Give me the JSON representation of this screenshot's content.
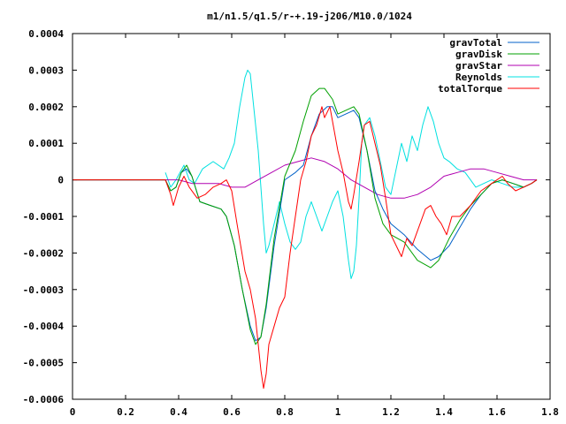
{
  "chart_data": {
    "type": "line",
    "title": "m1/n1.5/q1.5/r-+.19-j206/M10.0/1024",
    "xlabel": "",
    "ylabel": "",
    "xlim": [
      0,
      1.8
    ],
    "ylim": [
      -0.0006,
      0.0004
    ],
    "xticks": [
      0,
      0.2,
      0.4,
      0.6,
      0.8,
      1,
      1.2,
      1.4,
      1.6,
      1.8
    ],
    "xtick_labels": [
      "0",
      "0.2",
      "0.4",
      "0.6",
      "0.8",
      "1",
      "1.2",
      "1.4",
      "1.6",
      "1.8"
    ],
    "yticks": [
      0.0004,
      0.0003,
      0.0002,
      0.0001,
      0,
      -0.0001,
      -0.0002,
      -0.0003,
      -0.0004,
      -0.0005,
      -0.0006
    ],
    "ytick_labels": [
      "0.0004",
      "0.0003",
      "0.0002",
      "0.0001",
      "0",
      "-0.0001",
      "-0.0002",
      "-0.0003",
      "-0.0004",
      "-0.0005",
      "-0.0006"
    ],
    "grid": false,
    "legend_position": "top-right",
    "series": [
      {
        "name": "gravTotal",
        "color": "#0060c8",
        "points": [
          [
            0,
            0
          ],
          [
            0.35,
            0
          ],
          [
            0.37,
            -3e-05
          ],
          [
            0.39,
            -2e-05
          ],
          [
            0.41,
            2e-05
          ],
          [
            0.43,
            3e-05
          ],
          [
            0.45,
            1e-05
          ],
          [
            0.48,
            -6e-05
          ],
          [
            0.52,
            -7e-05
          ],
          [
            0.56,
            -8e-05
          ],
          [
            0.58,
            -0.0001
          ],
          [
            0.61,
            -0.00018
          ],
          [
            0.64,
            -0.0003
          ],
          [
            0.67,
            -0.0004
          ],
          [
            0.69,
            -0.00044
          ],
          [
            0.71,
            -0.00043
          ],
          [
            0.73,
            -0.00035
          ],
          [
            0.76,
            -0.00018
          ],
          [
            0.8,
            0
          ],
          [
            0.84,
            2e-05
          ],
          [
            0.87,
            4e-05
          ],
          [
            0.9,
            0.00012
          ],
          [
            0.93,
            0.00018
          ],
          [
            0.96,
            0.0002
          ],
          [
            0.98,
            0.0002
          ],
          [
            1.0,
            0.00017
          ],
          [
            1.03,
            0.00018
          ],
          [
            1.06,
            0.00019
          ],
          [
            1.08,
            0.00017
          ],
          [
            1.11,
            8e-05
          ],
          [
            1.14,
            -3e-05
          ],
          [
            1.17,
            -8e-05
          ],
          [
            1.2,
            -0.00012
          ],
          [
            1.25,
            -0.00015
          ],
          [
            1.3,
            -0.00019
          ],
          [
            1.35,
            -0.00022
          ],
          [
            1.38,
            -0.00021
          ],
          [
            1.42,
            -0.00018
          ],
          [
            1.46,
            -0.00013
          ],
          [
            1.5,
            -8e-05
          ],
          [
            1.54,
            -4e-05
          ],
          [
            1.58,
            -1e-05
          ],
          [
            1.62,
            0
          ],
          [
            1.66,
            -1e-05
          ],
          [
            1.7,
            -2e-05
          ],
          [
            1.73,
            -1e-05
          ],
          [
            1.75,
            0
          ]
        ]
      },
      {
        "name": "gravDisk",
        "color": "#00a000",
        "points": [
          [
            0,
            0
          ],
          [
            0.35,
            0
          ],
          [
            0.37,
            -3e-05
          ],
          [
            0.39,
            -2e-05
          ],
          [
            0.41,
            2e-05
          ],
          [
            0.43,
            4e-05
          ],
          [
            0.45,
            1e-05
          ],
          [
            0.48,
            -6e-05
          ],
          [
            0.52,
            -7e-05
          ],
          [
            0.56,
            -8e-05
          ],
          [
            0.58,
            -0.0001
          ],
          [
            0.61,
            -0.00018
          ],
          [
            0.64,
            -0.0003
          ],
          [
            0.67,
            -0.00041
          ],
          [
            0.69,
            -0.00045
          ],
          [
            0.71,
            -0.00043
          ],
          [
            0.73,
            -0.00034
          ],
          [
            0.76,
            -0.00016
          ],
          [
            0.8,
            1e-05
          ],
          [
            0.84,
            8e-05
          ],
          [
            0.87,
            0.00016
          ],
          [
            0.9,
            0.00023
          ],
          [
            0.93,
            0.00025
          ],
          [
            0.95,
            0.00025
          ],
          [
            0.98,
            0.00022
          ],
          [
            1.0,
            0.00018
          ],
          [
            1.03,
            0.00019
          ],
          [
            1.06,
            0.0002
          ],
          [
            1.08,
            0.00018
          ],
          [
            1.11,
            8e-05
          ],
          [
            1.14,
            -5e-05
          ],
          [
            1.17,
            -0.00012
          ],
          [
            1.2,
            -0.00015
          ],
          [
            1.25,
            -0.00017
          ],
          [
            1.3,
            -0.00022
          ],
          [
            1.35,
            -0.00024
          ],
          [
            1.38,
            -0.00022
          ],
          [
            1.42,
            -0.00016
          ],
          [
            1.46,
            -0.00011
          ],
          [
            1.5,
            -7e-05
          ],
          [
            1.54,
            -4e-05
          ],
          [
            1.58,
            -1e-05
          ],
          [
            1.62,
            0
          ],
          [
            1.66,
            -1e-05
          ],
          [
            1.7,
            -2e-05
          ],
          [
            1.73,
            -1e-05
          ],
          [
            1.75,
            0
          ]
        ]
      },
      {
        "name": "gravStar",
        "color": "#b000b0",
        "points": [
          [
            0,
            0
          ],
          [
            0.35,
            0
          ],
          [
            0.4,
            0
          ],
          [
            0.45,
            -1e-05
          ],
          [
            0.5,
            -1e-05
          ],
          [
            0.55,
            -1e-05
          ],
          [
            0.6,
            -2e-05
          ],
          [
            0.65,
            -2e-05
          ],
          [
            0.7,
            0
          ],
          [
            0.75,
            2e-05
          ],
          [
            0.8,
            4e-05
          ],
          [
            0.85,
            5e-05
          ],
          [
            0.9,
            6e-05
          ],
          [
            0.95,
            5e-05
          ],
          [
            1.0,
            3e-05
          ],
          [
            1.05,
            0
          ],
          [
            1.1,
            -2e-05
          ],
          [
            1.15,
            -4e-05
          ],
          [
            1.2,
            -5e-05
          ],
          [
            1.25,
            -5e-05
          ],
          [
            1.3,
            -4e-05
          ],
          [
            1.35,
            -2e-05
          ],
          [
            1.4,
            1e-05
          ],
          [
            1.45,
            2e-05
          ],
          [
            1.5,
            3e-05
          ],
          [
            1.55,
            3e-05
          ],
          [
            1.6,
            2e-05
          ],
          [
            1.65,
            1e-05
          ],
          [
            1.7,
            0
          ],
          [
            1.75,
            0
          ]
        ]
      },
      {
        "name": "Reynolds",
        "color": "#00e0e0",
        "points": [
          [
            0.35,
            2e-05
          ],
          [
            0.37,
            -2e-05
          ],
          [
            0.39,
            0
          ],
          [
            0.42,
            4e-05
          ],
          [
            0.44,
            0
          ],
          [
            0.46,
            -1e-05
          ],
          [
            0.49,
            3e-05
          ],
          [
            0.53,
            5e-05
          ],
          [
            0.57,
            3e-05
          ],
          [
            0.59,
            6e-05
          ],
          [
            0.61,
            0.0001
          ],
          [
            0.63,
            0.0002
          ],
          [
            0.65,
            0.00028
          ],
          [
            0.66,
            0.0003
          ],
          [
            0.67,
            0.00029
          ],
          [
            0.68,
            0.00022
          ],
          [
            0.7,
            8e-05
          ],
          [
            0.72,
            -0.00012
          ],
          [
            0.73,
            -0.0002
          ],
          [
            0.74,
            -0.00018
          ],
          [
            0.76,
            -0.00012
          ],
          [
            0.78,
            -6e-05
          ],
          [
            0.8,
            -0.00012
          ],
          [
            0.82,
            -0.00017
          ],
          [
            0.84,
            -0.00019
          ],
          [
            0.86,
            -0.00017
          ],
          [
            0.88,
            -0.0001
          ],
          [
            0.9,
            -6e-05
          ],
          [
            0.92,
            -0.0001
          ],
          [
            0.94,
            -0.00014
          ],
          [
            0.96,
            -0.0001
          ],
          [
            0.98,
            -6e-05
          ],
          [
            1.0,
            -3e-05
          ],
          [
            1.02,
            -0.0001
          ],
          [
            1.04,
            -0.00022
          ],
          [
            1.05,
            -0.00027
          ],
          [
            1.06,
            -0.00025
          ],
          [
            1.07,
            -0.00018
          ],
          [
            1.08,
            -5e-05
          ],
          [
            1.09,
            0.0001
          ],
          [
            1.1,
            0.00015
          ],
          [
            1.12,
            0.00017
          ],
          [
            1.14,
            0.00012
          ],
          [
            1.16,
            5e-05
          ],
          [
            1.18,
            -2e-05
          ],
          [
            1.2,
            -4e-05
          ],
          [
            1.22,
            3e-05
          ],
          [
            1.24,
            0.0001
          ],
          [
            1.26,
            5e-05
          ],
          [
            1.28,
            0.00012
          ],
          [
            1.3,
            8e-05
          ],
          [
            1.32,
            0.00015
          ],
          [
            1.34,
            0.0002
          ],
          [
            1.36,
            0.00016
          ],
          [
            1.38,
            0.0001
          ],
          [
            1.4,
            6e-05
          ],
          [
            1.42,
            5e-05
          ],
          [
            1.45,
            3e-05
          ],
          [
            1.48,
            2e-05
          ],
          [
            1.5,
            0
          ],
          [
            1.52,
            -2e-05
          ],
          [
            1.55,
            -1e-05
          ],
          [
            1.58,
            0
          ],
          [
            1.62,
            -1e-05
          ],
          [
            1.66,
            -2e-05
          ],
          [
            1.7,
            -2e-05
          ],
          [
            1.73,
            -1e-05
          ],
          [
            1.75,
            0
          ]
        ]
      },
      {
        "name": "totalTorque",
        "color": "#ff0000",
        "points": [
          [
            0,
            0
          ],
          [
            0.35,
            0
          ],
          [
            0.37,
            -4e-05
          ],
          [
            0.38,
            -7e-05
          ],
          [
            0.4,
            -2e-05
          ],
          [
            0.42,
            1e-05
          ],
          [
            0.44,
            -2e-05
          ],
          [
            0.47,
            -5e-05
          ],
          [
            0.5,
            -4e-05
          ],
          [
            0.53,
            -2e-05
          ],
          [
            0.56,
            -1e-05
          ],
          [
            0.58,
            0
          ],
          [
            0.6,
            -3e-05
          ],
          [
            0.62,
            -0.00012
          ],
          [
            0.65,
            -0.00025
          ],
          [
            0.67,
            -0.0003
          ],
          [
            0.69,
            -0.00038
          ],
          [
            0.7,
            -0.00045
          ],
          [
            0.71,
            -0.00052
          ],
          [
            0.72,
            -0.00057
          ],
          [
            0.73,
            -0.00053
          ],
          [
            0.74,
            -0.00045
          ],
          [
            0.76,
            -0.0004
          ],
          [
            0.78,
            -0.00035
          ],
          [
            0.8,
            -0.00032
          ],
          [
            0.82,
            -0.0002
          ],
          [
            0.84,
            -0.0001
          ],
          [
            0.86,
            0
          ],
          [
            0.88,
            5e-05
          ],
          [
            0.9,
            0.00012
          ],
          [
            0.92,
            0.00015
          ],
          [
            0.94,
            0.0002
          ],
          [
            0.95,
            0.00017
          ],
          [
            0.97,
            0.0002
          ],
          [
            0.98,
            0.00016
          ],
          [
            1.0,
            8e-05
          ],
          [
            1.02,
            2e-05
          ],
          [
            1.04,
            -6e-05
          ],
          [
            1.05,
            -8e-05
          ],
          [
            1.06,
            -4e-05
          ],
          [
            1.08,
            5e-05
          ],
          [
            1.1,
            0.00015
          ],
          [
            1.12,
            0.00016
          ],
          [
            1.14,
            0.0001
          ],
          [
            1.16,
            4e-05
          ],
          [
            1.18,
            -5e-05
          ],
          [
            1.2,
            -0.00015
          ],
          [
            1.22,
            -0.00018
          ],
          [
            1.24,
            -0.00021
          ],
          [
            1.26,
            -0.00016
          ],
          [
            1.28,
            -0.00018
          ],
          [
            1.3,
            -0.00014
          ],
          [
            1.33,
            -8e-05
          ],
          [
            1.35,
            -7e-05
          ],
          [
            1.37,
            -0.0001
          ],
          [
            1.39,
            -0.00012
          ],
          [
            1.41,
            -0.00015
          ],
          [
            1.43,
            -0.0001
          ],
          [
            1.46,
            -0.0001
          ],
          [
            1.5,
            -7e-05
          ],
          [
            1.54,
            -3e-05
          ],
          [
            1.58,
            -1e-05
          ],
          [
            1.6,
            0
          ],
          [
            1.62,
            1e-05
          ],
          [
            1.64,
            -1e-05
          ],
          [
            1.67,
            -3e-05
          ],
          [
            1.7,
            -2e-05
          ],
          [
            1.73,
            -1e-05
          ],
          [
            1.75,
            0
          ]
        ]
      }
    ]
  }
}
